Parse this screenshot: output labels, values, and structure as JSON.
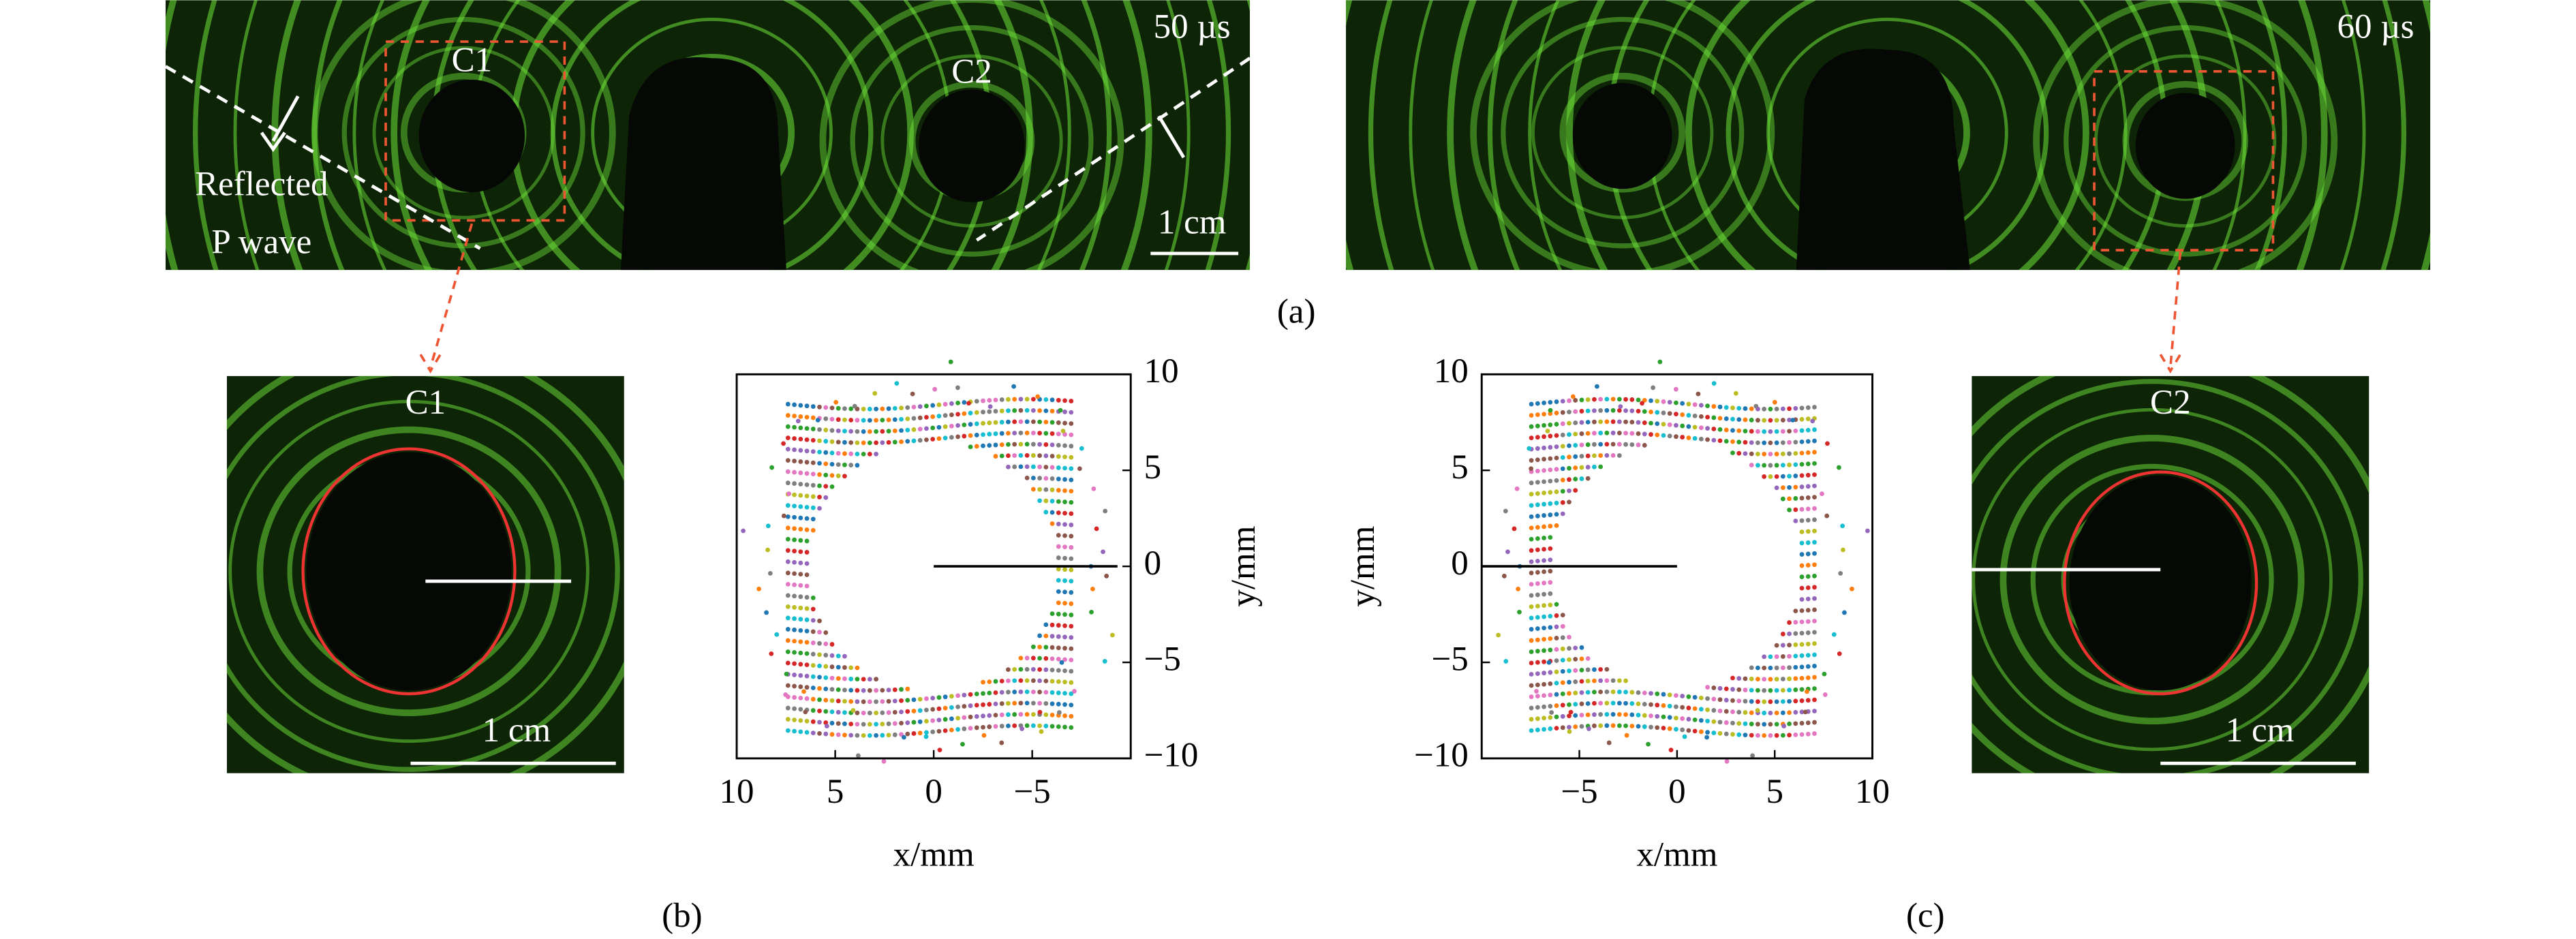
{
  "figure": {
    "panel_a": {
      "label": "(a)",
      "left": {
        "time": "50 µs",
        "cavities": [
          "C1",
          "C2"
        ],
        "annotation": [
          "Reflected",
          "P wave"
        ],
        "scale": "1 cm"
      },
      "right": {
        "time": "60 µs"
      }
    },
    "panel_b": {
      "label": "(b)",
      "image": {
        "title": "C1",
        "scale": "1 cm"
      },
      "plot": {
        "xlabel": "x/mm",
        "ylabel": "y/mm",
        "xlim": [
          10,
          -10
        ],
        "ylim": [
          -10,
          10
        ],
        "xticks": [
          10,
          5,
          0,
          {
            "value": -5,
            "label": "−5"
          }
        ],
        "yticks": [
          10,
          5,
          0,
          {
            "value": -5,
            "label": "−5"
          },
          {
            "value": -10,
            "label": "−10"
          }
        ]
      }
    },
    "panel_c": {
      "label": "(c)",
      "image": {
        "title": "C2",
        "scale": "1 cm"
      },
      "plot": {
        "xlabel": "x/mm",
        "ylabel": "y/mm",
        "xlim": [
          -10,
          10
        ],
        "ylim": [
          -10,
          10
        ],
        "xticks": [
          {
            "value": -5,
            "label": "−5"
          },
          0,
          5,
          10
        ],
        "yticks": [
          10,
          5,
          0,
          {
            "value": -5,
            "label": "−5"
          },
          {
            "value": -10,
            "label": "−10"
          }
        ]
      }
    }
  }
}
